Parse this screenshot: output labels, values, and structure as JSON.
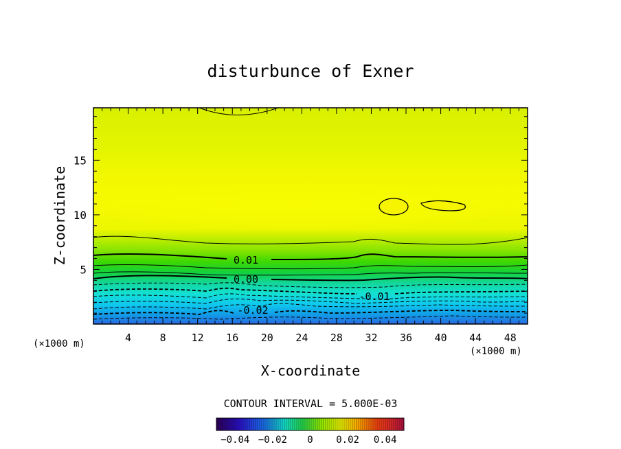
{
  "chart_data": {
    "type": "contour",
    "title": "disturbunce of Exner",
    "xlabel": "X-coordinate",
    "ylabel": "Z-coordinate",
    "x_unit_left": "(×1000 m)",
    "x_unit_right": "(×1000 m)",
    "xlim": [
      0,
      50
    ],
    "ylim": [
      0,
      19.8
    ],
    "x_ticks": [
      4,
      8,
      12,
      16,
      20,
      24,
      28,
      32,
      36,
      40,
      44,
      48
    ],
    "x_tick_labels": [
      "4",
      "8",
      "12",
      "16",
      "20",
      "24",
      "28",
      "32",
      "36",
      "40",
      "44",
      "48"
    ],
    "y_ticks": [
      5,
      10,
      15
    ],
    "y_tick_labels": [
      "5",
      "10",
      "15"
    ],
    "contour_interval_text": "CONTOUR INTERVAL = 5.000E-03",
    "contour_labels": [
      {
        "text": "0.01",
        "x": 17.5,
        "y": 5.9
      },
      {
        "text": "0.00",
        "x": 17.5,
        "y": 4.1
      },
      {
        "text": "-0.01",
        "x": 31.8,
        "y": 2.5
      },
      {
        "text": "-0.02",
        "x": 18.8,
        "y": 1.3
      }
    ],
    "colorbar": {
      "min": -0.05,
      "max": 0.05,
      "tick_values": [
        -0.04,
        -0.02,
        0,
        0.02,
        0.04
      ],
      "tick_labels": [
        "−0.04",
        "−0.02",
        "0",
        "0.02",
        "0.04"
      ]
    },
    "grid": false
  }
}
